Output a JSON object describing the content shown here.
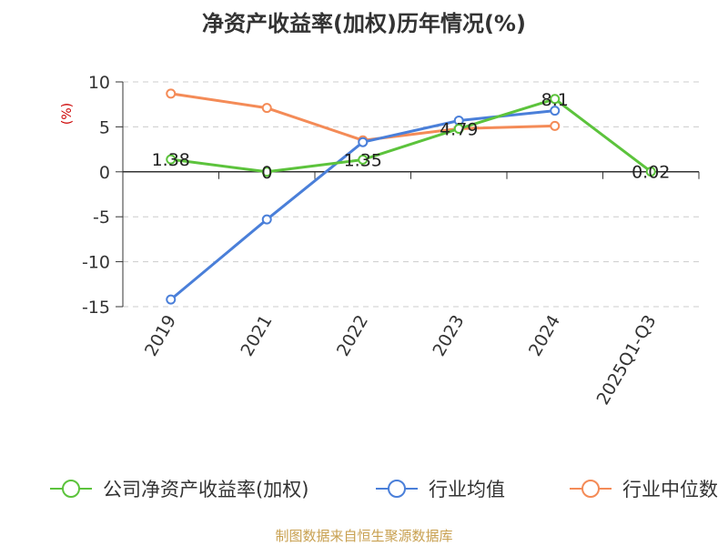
{
  "chart_data": {
    "type": "line",
    "title": "净资产收益率(加权)历年情况(%)",
    "ylabel": "(%)",
    "categories": [
      "2019",
      "2021",
      "2022",
      "2023",
      "2024",
      "2025Q1-Q3"
    ],
    "ylim": [
      -15,
      10
    ],
    "yticks": [
      10,
      5,
      0,
      -5,
      -10,
      -15
    ],
    "grid": true,
    "legend_position": "bottom",
    "series": [
      {
        "name": "公司净资产收益率(加权)",
        "color": "#5cc33c",
        "values": [
          1.38,
          0,
          1.35,
          4.79,
          8.1,
          0.02
        ],
        "labels": [
          "1.38",
          "0",
          "1.35",
          "4.79",
          "8.1",
          "0.02"
        ]
      },
      {
        "name": "行业均值",
        "color": "#4a7fd9",
        "values": [
          -14.2,
          -5.3,
          3.3,
          5.7,
          6.8,
          null
        ]
      },
      {
        "name": "行业中位数",
        "color": "#f48b57",
        "values": [
          8.7,
          7.1,
          3.5,
          4.8,
          5.1,
          null
        ]
      }
    ],
    "source": "制图数据来自恒生聚源数据库",
    "colors": {
      "ylabel": "#cc0000",
      "source": "#c8a050",
      "text": "#333333",
      "grid": "#cccccc",
      "axis": "#333333"
    }
  }
}
